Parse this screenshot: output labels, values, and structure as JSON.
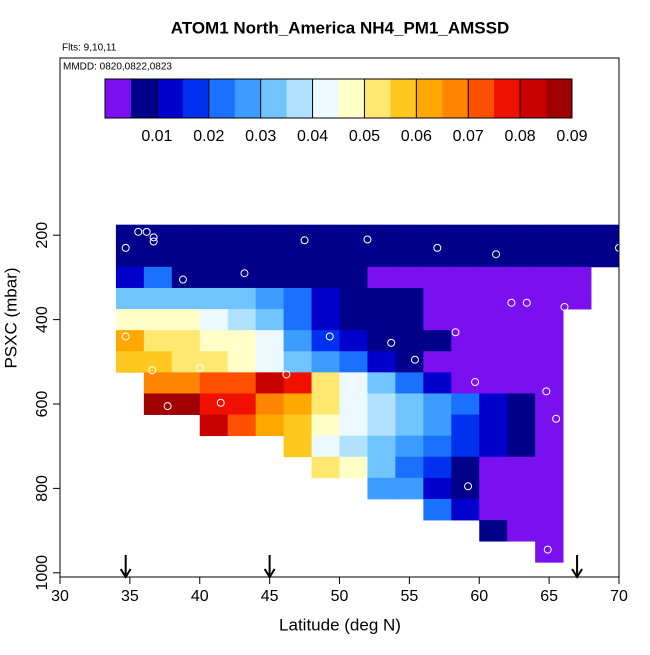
{
  "chart_data": {
    "type": "heatmap",
    "title": "ATOM1 North_America NH4_PM1_AMSSD",
    "subtitle": "Flts: 9,10,11",
    "annotation": "MMDD: 0820,0822,0823",
    "x_label": "Latitude (deg N)",
    "y_label": "PSXC (mbar)",
    "xlim": [
      30,
      70
    ],
    "xticks": [
      30,
      35,
      40,
      45,
      50,
      55,
      60,
      65,
      70
    ],
    "ylim": [
      1010,
      -220
    ],
    "yticks": [
      200,
      400,
      600,
      800,
      1000
    ],
    "x_edges": [
      34,
      36,
      38,
      40,
      42,
      44,
      46,
      48,
      50,
      52,
      54,
      56,
      58,
      60,
      62,
      64,
      66,
      68,
      70
    ],
    "y_edges": [
      175,
      225,
      275,
      325,
      375,
      425,
      475,
      525,
      575,
      625,
      675,
      725,
      775,
      825,
      875,
      925,
      975
    ],
    "values": [
      [
        0.007,
        0.007,
        0.007,
        0.007,
        0.007,
        0.007,
        0.007,
        0.007,
        0.007,
        0.005,
        0.005,
        0.005,
        0.005,
        0.005,
        0.005,
        0.005,
        0.005,
        0.005
      ],
      [
        0.006,
        0.006,
        0.006,
        0.006,
        0.006,
        0.006,
        0.006,
        0.006,
        0.006,
        0.006,
        0.006,
        0.006,
        0.006,
        0.006,
        0.006,
        0.006,
        0.006,
        0.006
      ],
      [
        0.01,
        0.02,
        0.005,
        0.008,
        0.008,
        0.008,
        0.008,
        0.008,
        0.005,
        0.004,
        0.004,
        0.004,
        0.004,
        0.004,
        0.004,
        0.004,
        0.004,
        null
      ],
      [
        0.03,
        0.03,
        0.03,
        0.03,
        0.03,
        0.025,
        0.02,
        0.01,
        0.008,
        0.006,
        0.006,
        0.004,
        0.004,
        0.004,
        0.004,
        0.004,
        0.004,
        null
      ],
      [
        0.045,
        0.045,
        0.045,
        0.04,
        0.038,
        0.03,
        0.02,
        0.01,
        0.008,
        0.006,
        0.005,
        0.004,
        0.004,
        0.004,
        0.004,
        0.004,
        null,
        null
      ],
      [
        0.06,
        0.052,
        0.052,
        0.045,
        0.045,
        0.04,
        0.025,
        0.015,
        0.01,
        0.006,
        0.005,
        0.005,
        0.004,
        0.003,
        0.003,
        0.003,
        null,
        null
      ],
      [
        0.058,
        0.056,
        0.052,
        0.05,
        0.048,
        0.04,
        0.03,
        0.025,
        0.02,
        0.01,
        0.005,
        0.004,
        0.003,
        0.003,
        0.003,
        0.003,
        null,
        null
      ],
      [
        null,
        0.065,
        0.065,
        0.07,
        0.072,
        0.082,
        0.075,
        0.05,
        0.04,
        0.03,
        0.02,
        0.01,
        0.004,
        0.004,
        0.004,
        0.004,
        null,
        null
      ],
      [
        null,
        0.088,
        0.088,
        0.075,
        0.075,
        0.065,
        0.06,
        0.05,
        0.04,
        0.035,
        0.03,
        0.025,
        0.02,
        0.012,
        0.008,
        0.004,
        null,
        null
      ],
      [
        null,
        null,
        null,
        0.08,
        0.07,
        0.06,
        0.055,
        0.045,
        0.04,
        0.035,
        0.03,
        0.025,
        0.015,
        0.01,
        0.005,
        0.004,
        null,
        null
      ],
      [
        null,
        null,
        null,
        null,
        null,
        null,
        0.058,
        0.04,
        0.035,
        0.03,
        0.025,
        0.02,
        0.015,
        0.01,
        0.005,
        0.004,
        null,
        null
      ],
      [
        null,
        null,
        null,
        null,
        null,
        null,
        null,
        0.05,
        0.045,
        0.03,
        0.02,
        0.015,
        0.008,
        0.004,
        0.004,
        0.004,
        null,
        null
      ],
      [
        null,
        null,
        null,
        null,
        null,
        null,
        null,
        null,
        null,
        0.025,
        0.025,
        0.012,
        0.005,
        0.004,
        0.004,
        0.004,
        null,
        null
      ],
      [
        null,
        null,
        null,
        null,
        null,
        null,
        null,
        null,
        null,
        null,
        null,
        0.022,
        0.012,
        0.004,
        0.004,
        0.004,
        null,
        null
      ],
      [
        null,
        null,
        null,
        null,
        null,
        null,
        null,
        null,
        null,
        null,
        null,
        null,
        null,
        0.005,
        0.004,
        0.004,
        null,
        null
      ],
      [
        null,
        null,
        null,
        null,
        null,
        null,
        null,
        null,
        null,
        null,
        null,
        null,
        null,
        null,
        null,
        0.003,
        null,
        null
      ]
    ],
    "points": {
      "x": [
        34.7,
        35.6,
        36.2,
        36.7,
        36.7,
        38.8,
        43.2,
        47.5,
        52,
        57,
        61.2,
        70,
        34.7,
        36.6,
        40,
        49.3,
        53.7,
        58.3,
        55.4,
        46.2,
        50.9,
        59.7,
        64.8,
        37.7,
        41.5,
        59.2,
        64.9,
        62.3,
        63.4,
        66.1,
        65.5
      ],
      "y": [
        230,
        192,
        192,
        205,
        215,
        305,
        290,
        212,
        210,
        230,
        245,
        230,
        440,
        520,
        515,
        440,
        455,
        430,
        495,
        530,
        550,
        548,
        570,
        605,
        597,
        795,
        945,
        360,
        360,
        370,
        635
      ]
    },
    "flight_markers_lat": [
      34.7,
      45,
      67
    ],
    "colorbar": {
      "lim": [
        0,
        0.09
      ],
      "ticks": [
        0.01,
        0.02,
        0.03,
        0.04,
        0.05,
        0.06,
        0.07,
        0.08,
        0.09
      ],
      "colors": [
        "#7a10f0",
        "#00008b",
        "#0000cd",
        "#0030f0",
        "#1a70ff",
        "#3c9cff",
        "#70c4ff",
        "#b0e2ff",
        "#ecfaff",
        "#ffffc8",
        "#ffe870",
        "#ffc820",
        "#ffa800",
        "#ff8400",
        "#ff5000",
        "#f01000",
        "#c80000",
        "#a00000"
      ]
    }
  }
}
